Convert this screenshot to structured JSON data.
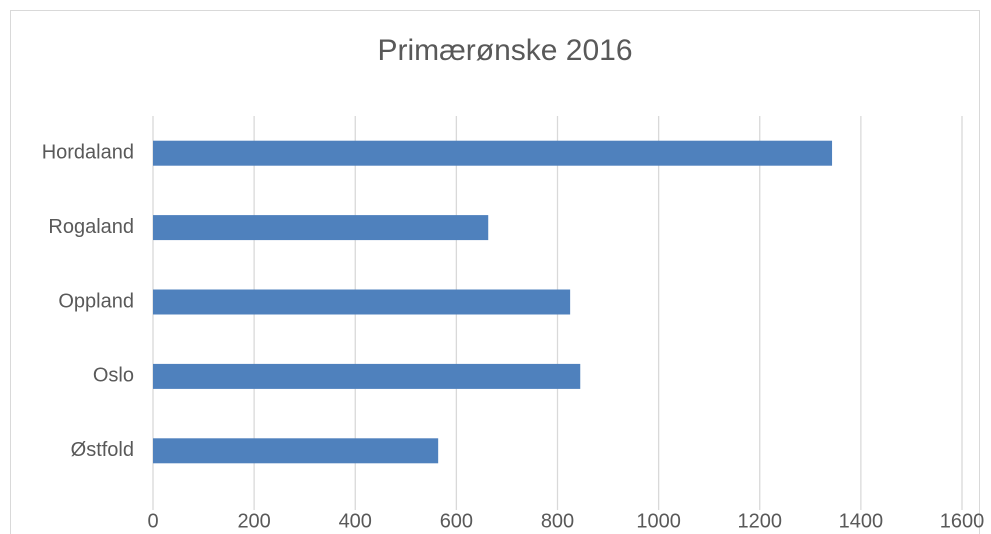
{
  "chart_data": {
    "type": "hbar",
    "title": "Primærønske 2016",
    "categories": [
      "Hordaland",
      "Rogaland",
      "Oppland",
      "Oslo",
      "Østfold"
    ],
    "values": [
      1343,
      663,
      825,
      845,
      564
    ],
    "color": "#4f81bd",
    "xlim": [
      0,
      1600
    ],
    "xticks": [
      0,
      200,
      400,
      600,
      800,
      1000,
      1200,
      1400,
      1600
    ],
    "grid": true
  }
}
